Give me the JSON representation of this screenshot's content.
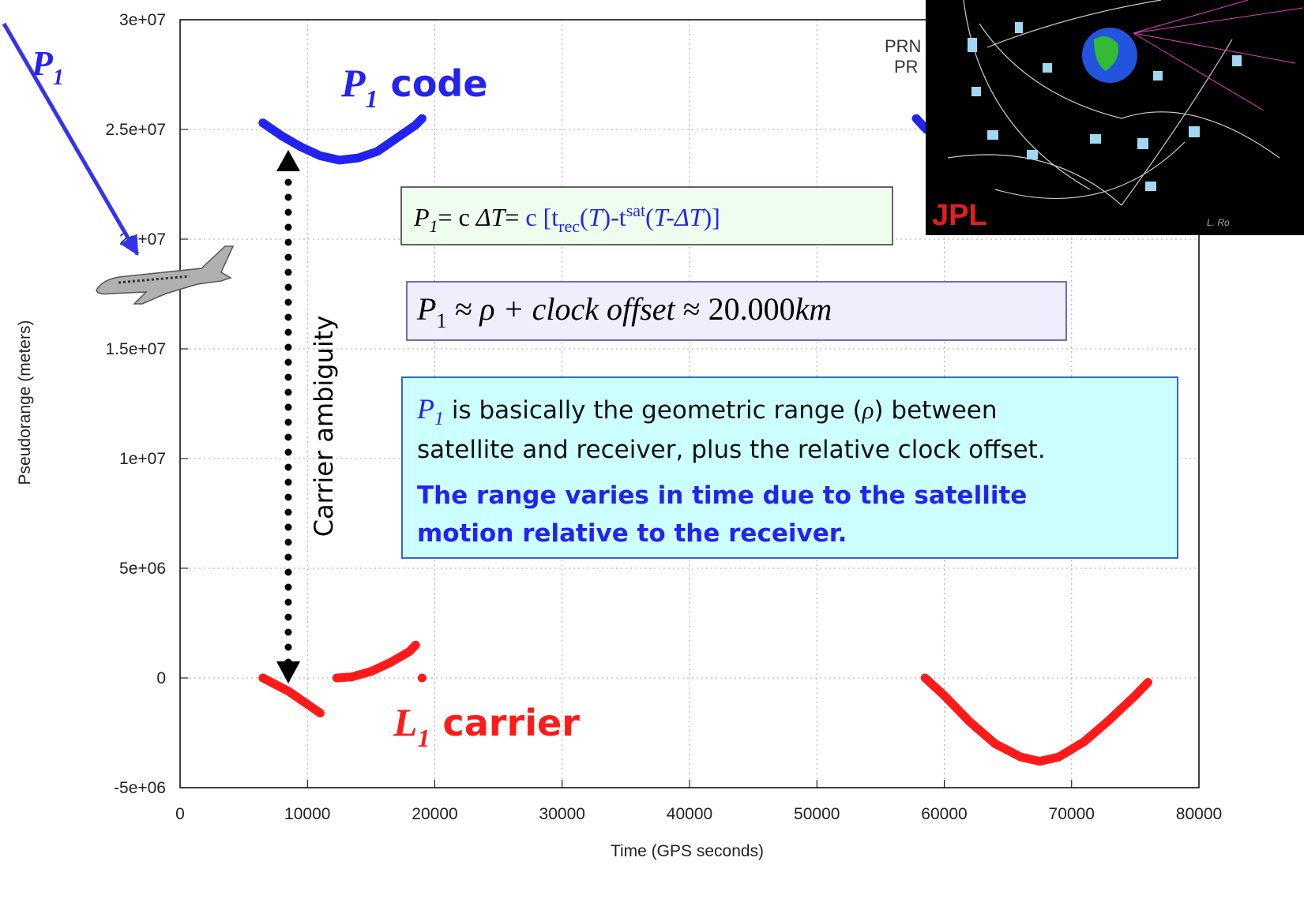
{
  "chart_data": {
    "type": "line",
    "xlabel": "Time (GPS seconds)",
    "ylabel": "Pseudorange (meters)",
    "xlim": [
      0,
      80000
    ],
    "ylim": [
      -5000000,
      30000000
    ],
    "xticks": [
      0,
      10000,
      20000,
      30000,
      40000,
      50000,
      60000,
      70000,
      80000
    ],
    "yticks": [
      {
        "value": -5000000,
        "label": "-5e+06"
      },
      0,
      {
        "value": 5000000,
        "label": "5e+06"
      },
      {
        "value": 10000000,
        "label": "1e+07"
      },
      {
        "value": 15000000,
        "label": "1.5e+07"
      },
      {
        "value": 20000000,
        "label": "2e+07"
      },
      {
        "value": 25000000,
        "label": "2.5e+07"
      },
      {
        "value": 30000000,
        "label": "3e+07"
      }
    ],
    "grid": true,
    "series": [
      {
        "color": "#2323f0",
        "x": [
          6500,
          8000,
          9500,
          11000,
          12500,
          14000,
          15500,
          17000,
          18500,
          19000,
          null,
          57800,
          58600
        ],
        "values": [
          25300000,
          24700000,
          24200000,
          23800000,
          23600000,
          23700000,
          24000000,
          24600000,
          25200000,
          25500000,
          null,
          25500000,
          25000000
        ]
      },
      {
        "color": "#ff1a1a",
        "x": [
          6500,
          7500,
          8500,
          9500,
          10500,
          11000,
          null,
          12300,
          13500,
          15000,
          16500,
          18000,
          18500,
          null,
          19000,
          null,
          58500,
          60000,
          62000,
          64000,
          66000,
          67500,
          69000,
          71000,
          73000,
          75000,
          76000
        ],
        "values": [
          0,
          -300000,
          -600000,
          -1000000,
          -1400000,
          -1600000,
          null,
          0,
          50000,
          300000,
          700000,
          1200000,
          1500000,
          null,
          0,
          null,
          0,
          -800000,
          -2000000,
          -3000000,
          -3600000,
          -3800000,
          -3600000,
          -2900000,
          -1900000,
          -800000,
          -200000
        ]
      }
    ]
  },
  "annotations": {
    "code_label": [
      "P",
      "1",
      " code"
    ],
    "carrier_label": [
      "L",
      "1",
      " carrier"
    ],
    "ambiguity": "Carrier ambiguity",
    "arrow_label": [
      "P",
      "1"
    ],
    "formula1": [
      "P",
      "1",
      "= c ",
      "ΔT",
      "= ",
      "c [t",
      "rec",
      "(",
      "T",
      ")-t",
      "sat",
      "(",
      "T-ΔT",
      ")]"
    ],
    "formula2": [
      "P",
      "1",
      " ≈ ρ + ",
      "clock offset",
      " ≈ 20.000",
      "km"
    ],
    "note": {
      "line1": [
        "P",
        "1",
        " is basically the geometric range (",
        "ρ",
        ")  between"
      ],
      "line2": "satellite and receiver, plus the relative clock offset.",
      "bold1": "The range varies in time due to the satellite",
      "bold2": "motion relative to the receiver."
    },
    "image": {
      "logo": "JPL",
      "credit": "L. Ro",
      "prn1": "PRN",
      "prn2": "PR"
    }
  }
}
